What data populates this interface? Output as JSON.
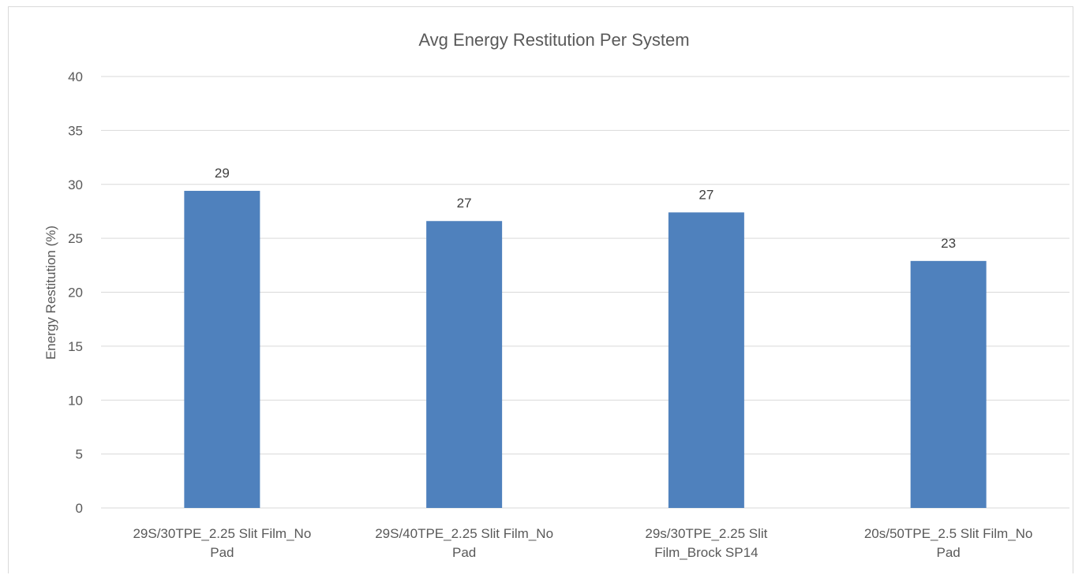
{
  "chart_data": {
    "type": "bar",
    "title": "Avg Energy Restitution Per System",
    "xlabel": "",
    "ylabel": "Energy Restitution (%)",
    "ylim": [
      0,
      40
    ],
    "ytick_step": 5,
    "yticks": [
      "0",
      "5",
      "10",
      "15",
      "20",
      "25",
      "30",
      "35",
      "40"
    ],
    "categories": [
      [
        "29S/30TPE_2.25 Slit Film_No",
        "Pad"
      ],
      [
        "29S/40TPE_2.25 Slit Film_No",
        "Pad"
      ],
      [
        "29s/30TPE_2.25 Slit",
        "Film_Brock SP14"
      ],
      [
        "20s/50TPE_2.5 Slit Film_No",
        "Pad"
      ]
    ],
    "values": [
      29.4,
      26.6,
      27.4,
      22.9
    ],
    "data_labels": [
      "29",
      "27",
      "27",
      "23"
    ],
    "bar_color": "#4f81bd",
    "grid": true,
    "legend": "none"
  }
}
